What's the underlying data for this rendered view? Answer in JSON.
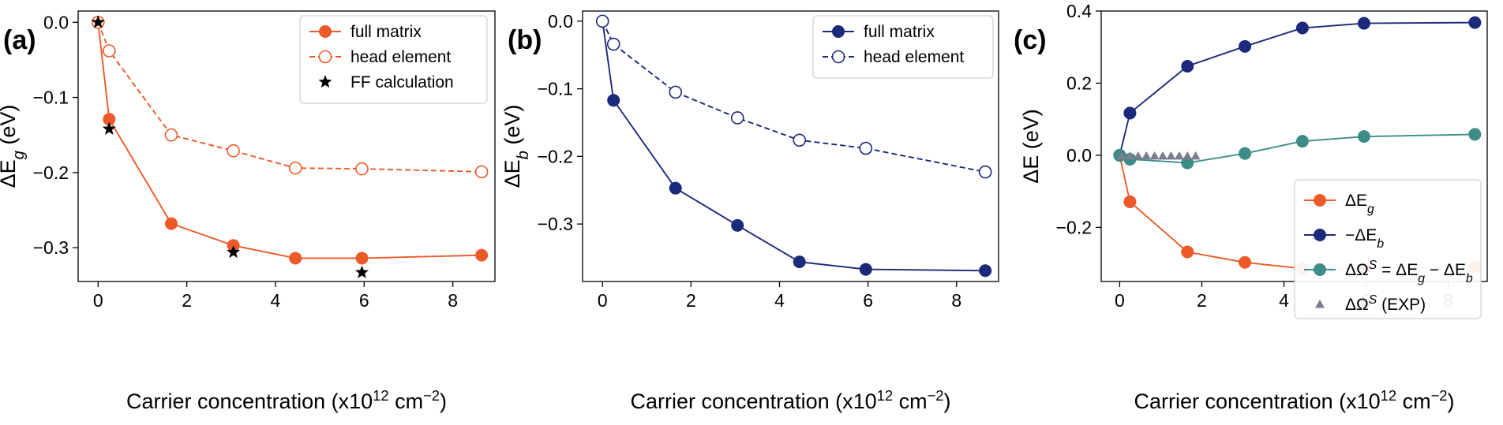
{
  "colors": {
    "orange": "#ed5a29",
    "navy": "#1b2a7a",
    "teal": "#3d8c87",
    "grey_exp": "#7a7f8e",
    "black": "#000000"
  },
  "chart_data": [
    {
      "panel_label": "(a)",
      "type": "line",
      "xlabel": "Carrier concentration (x10¹² cm⁻²)",
      "ylabel": "ΔE_g (eV)",
      "xlim": [
        -0.45,
        8.95
      ],
      "ylim": [
        -0.345,
        0.015
      ],
      "xticks": [
        0,
        2,
        4,
        6,
        8
      ],
      "yticks": [
        0.0,
        -0.1,
        -0.2,
        -0.3
      ],
      "ytick_labels": [
        "0.0",
        "−0.1",
        "−0.2",
        "−0.3"
      ],
      "legend_position": "top-right",
      "series": [
        {
          "name": "full matrix",
          "style": "solid-filled-circle",
          "color": "#ed5a29",
          "x": [
            0,
            0.25,
            1.65,
            3.05,
            4.45,
            5.95,
            8.65
          ],
          "y": [
            0.0,
            -0.129,
            -0.268,
            -0.297,
            -0.314,
            -0.314,
            -0.31
          ]
        },
        {
          "name": "head element",
          "style": "dashed-open-circle",
          "color": "#ed5a29",
          "x": [
            0,
            0.25,
            1.65,
            3.05,
            4.45,
            5.95,
            8.65
          ],
          "y": [
            0.0,
            -0.038,
            -0.15,
            -0.171,
            -0.194,
            -0.195,
            -0.199
          ]
        },
        {
          "name": "FF calculation",
          "style": "star",
          "color": "#000000",
          "x": [
            0,
            0.25,
            3.05,
            5.95
          ],
          "y": [
            0.0,
            -0.142,
            -0.306,
            -0.333
          ]
        }
      ]
    },
    {
      "panel_label": "(b)",
      "type": "line",
      "xlabel": "Carrier concentration (x10¹² cm⁻²)",
      "ylabel": "ΔE_b (eV)",
      "xlim": [
        -0.45,
        8.95
      ],
      "ylim": [
        -0.385,
        0.015
      ],
      "xticks": [
        0,
        2,
        4,
        6,
        8
      ],
      "yticks": [
        0.0,
        -0.1,
        -0.2,
        -0.3
      ],
      "ytick_labels": [
        "0.0",
        "−0.1",
        "−0.2",
        "−0.3"
      ],
      "legend_position": "top-right",
      "series": [
        {
          "name": "full matrix",
          "style": "solid-filled-circle",
          "color": "#1b2a7a",
          "x": [
            0,
            0.25,
            1.65,
            3.05,
            4.45,
            5.95,
            8.65
          ],
          "y": [
            0.0,
            -0.117,
            -0.247,
            -0.302,
            -0.356,
            -0.367,
            -0.369
          ]
        },
        {
          "name": "head element",
          "style": "dashed-open-circle",
          "color": "#1b2a7a",
          "x": [
            0,
            0.25,
            1.65,
            3.05,
            4.45,
            5.95,
            8.65
          ],
          "y": [
            0.0,
            -0.034,
            -0.105,
            -0.143,
            -0.176,
            -0.188,
            -0.223
          ]
        }
      ]
    },
    {
      "panel_label": "(c)",
      "type": "line",
      "xlabel": "Carrier concentration (x10¹² cm⁻²)",
      "ylabel": "ΔE (eV)",
      "xlim": [
        -0.45,
        8.95
      ],
      "ylim": [
        -0.35,
        0.4
      ],
      "xticks": [
        0,
        2,
        4,
        6,
        8
      ],
      "yticks": [
        0.4,
        0.2,
        0.0,
        -0.2
      ],
      "ytick_labels": [
        "0.4",
        "0.2",
        "0.0",
        "−0.2"
      ],
      "legend_position": "lower-right",
      "series": [
        {
          "name": "ΔE_g",
          "style": "solid-filled-circle",
          "color": "#ed5a29",
          "x": [
            0,
            0.25,
            1.65,
            3.05,
            4.45,
            5.95,
            8.65
          ],
          "y": [
            0.0,
            -0.129,
            -0.268,
            -0.297,
            -0.314,
            -0.314,
            -0.31
          ]
        },
        {
          "name": "−ΔE_b",
          "style": "solid-filled-circle",
          "color": "#1b2a7a",
          "x": [
            0,
            0.25,
            1.65,
            3.05,
            4.45,
            5.95,
            8.65
          ],
          "y": [
            0.0,
            0.117,
            0.247,
            0.302,
            0.353,
            0.366,
            0.368
          ]
        },
        {
          "name": "ΔΩ^S = ΔE_g − ΔE_b",
          "style": "solid-filled-circle",
          "color": "#3d8c87",
          "x": [
            0,
            0.25,
            1.65,
            3.05,
            4.45,
            5.95,
            8.65
          ],
          "y": [
            0.0,
            -0.011,
            -0.021,
            0.005,
            0.039,
            0.052,
            0.058
          ]
        },
        {
          "name": "ΔΩ^S (EXP)",
          "style": "triangle",
          "color": "#7a7f8e",
          "x": [
            0.05,
            0.25,
            0.45,
            0.65,
            0.85,
            1.05,
            1.25,
            1.45,
            1.65,
            1.85
          ],
          "y": [
            -0.002,
            -0.002,
            -0.002,
            -0.002,
            -0.002,
            -0.002,
            -0.002,
            -0.002,
            -0.002,
            -0.002
          ]
        }
      ]
    }
  ]
}
